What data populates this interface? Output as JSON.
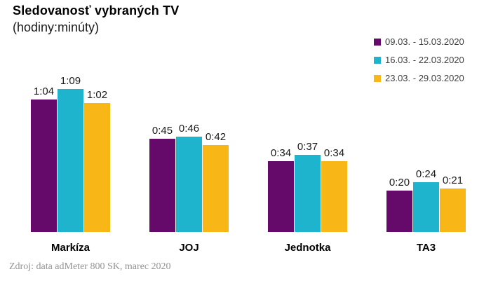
{
  "title": "Sledovanosť vybraných TV",
  "subtitle": "(hodiny:minúty)",
  "footer": "Zdroj: data adMeter 800 SK, marec 2020",
  "colors": {
    "series1": "#65096B",
    "series2": "#1FB4CE",
    "series3": "#F8B717",
    "legend_text": "#404040",
    "footer_text": "#939393",
    "background": "#FFFFFF"
  },
  "chart_data": {
    "type": "bar",
    "title": "Sledovanosť vybraných TV (hodiny:minúty)",
    "xlabel": "",
    "ylabel": "",
    "value_unit": "hours:minutes",
    "grid": false,
    "y_axis_visible": false,
    "legend_position": "top-right",
    "categories": [
      "Markíza",
      "JOJ",
      "Jednotka",
      "TA3"
    ],
    "series": [
      {
        "name": "09.03. - 15.03.2020",
        "color": "#65096B",
        "values_minutes": [
          64,
          45,
          34,
          20
        ],
        "labels": [
          "1:04",
          "0:45",
          "0:34",
          "0:20"
        ]
      },
      {
        "name": "16.03. - 22.03.2020",
        "color": "#1FB4CE",
        "values_minutes": [
          69,
          46,
          37,
          24
        ],
        "labels": [
          "1:09",
          "0:46",
          "0:37",
          "0:24"
        ]
      },
      {
        "name": "23.03. - 29.03.2020",
        "color": "#F8B717",
        "values_minutes": [
          62,
          42,
          34,
          21
        ],
        "labels": [
          "1:02",
          "0:42",
          "0:34",
          "0:21"
        ]
      }
    ]
  }
}
